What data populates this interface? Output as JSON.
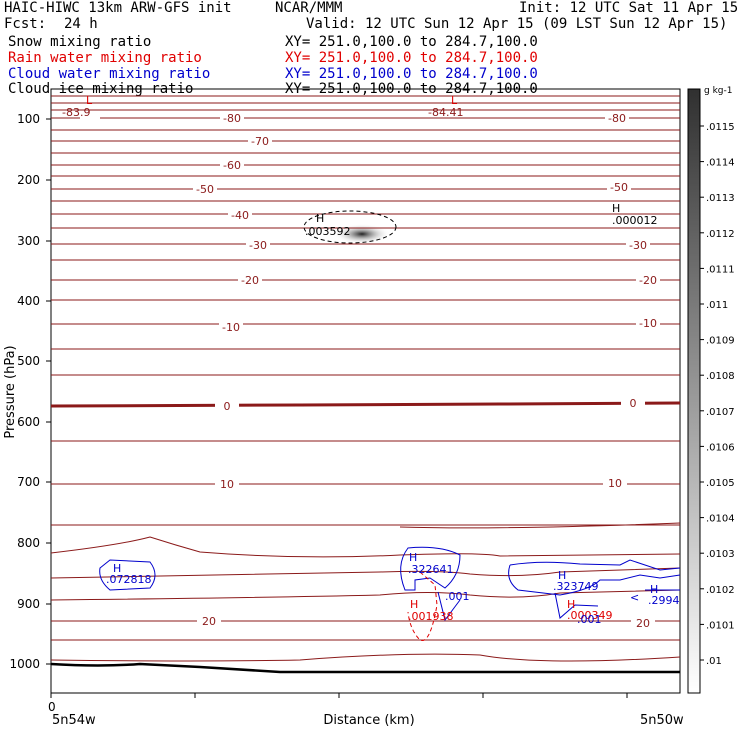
{
  "header": {
    "model": "HAIC-HIWC 13km ARW-GFS init",
    "center": "NCAR/MMM",
    "init": "Init: 12 UTC Sat 11 Apr 15",
    "fcst_label": "Fcst:",
    "fcst_value": "24 h",
    "valid": "Valid: 12 UTC Sun 12 Apr 15 (09 LST Sun 12 Apr 15)",
    "fields": [
      {
        "name": "Snow mixing ratio",
        "xy": "XY= 251.0,100.0 to 284.7,100.0",
        "color": "#000000"
      },
      {
        "name": "Rain water mixing ratio",
        "xy": "XY= 251.0,100.0 to 284.7,100.0",
        "color": "#e00000"
      },
      {
        "name": "Cloud water mixing ratio",
        "xy": "XY= 251.0,100.0 to 284.7,100.0",
        "color": "#0000cc"
      },
      {
        "name": "Cloud ice mixing ratio",
        "xy": "XY= 251.0,100.0 to 284.7,100.0",
        "color": "#000000"
      }
    ]
  },
  "chart_data": {
    "type": "cross-section",
    "ylabel": "Pressure (hPa)",
    "xlabel": "Distance (km)",
    "y_ticks": [
      100,
      200,
      300,
      400,
      500,
      600,
      700,
      800,
      900,
      1000
    ],
    "x_tick_label": "0",
    "x_left_label": "5n54w",
    "x_right_label": "5n50w",
    "colorbar": {
      "unit": "g kg-1",
      "labels": [
        ".0115",
        ".0114",
        ".0113",
        ".0112",
        ".0111",
        ".011",
        ".0109",
        ".0108",
        ".0107",
        ".0106",
        ".0105",
        ".0104",
        ".0103",
        ".0102",
        ".0101",
        ".01"
      ]
    },
    "temperature_labels": [
      "-80",
      "-70",
      "-60",
      "-50",
      "-40",
      "-30",
      "-20",
      "-10",
      "0",
      "10",
      "20"
    ],
    "annotations": [
      {
        "text": "L",
        "color": "#e00000"
      },
      {
        "text": "-83.9",
        "color": "#8b1a1a"
      },
      {
        "text": "L",
        "color": "#e00000"
      },
      {
        "text": "-84.41",
        "color": "#8b1a1a"
      },
      {
        "text": "H",
        "color": "#000000"
      },
      {
        "text": ".003592",
        "color": "#000000"
      },
      {
        "text": "H",
        "color": "#000000"
      },
      {
        "text": ".000012",
        "color": "#000000"
      },
      {
        "text": "H",
        "color": "#0000cc"
      },
      {
        "text": ".072818",
        "color": "#0000cc"
      },
      {
        "text": "H",
        "color": "#0000cc"
      },
      {
        "text": ".322641",
        "color": "#0000cc"
      },
      {
        "text": ".001",
        "color": "#0000cc"
      },
      {
        "text": "H",
        "color": "#e00000"
      },
      {
        "text": ".001938",
        "color": "#e00000"
      },
      {
        "text": "H",
        "color": "#0000cc"
      },
      {
        "text": ".323749",
        "color": "#0000cc"
      },
      {
        "text": "H",
        "color": "#e00000"
      },
      {
        "text": ".000349",
        "color": "#e00000"
      },
      {
        "text": ".001",
        "color": "#0000cc"
      },
      {
        "text": "<",
        "color": "#0000cc"
      },
      {
        "text": "H",
        "color": "#0000cc"
      },
      {
        "text": ".2994",
        "color": "#0000cc"
      }
    ],
    "colors": {
      "isotherm": "#8b1a1a",
      "rain": "#e00000",
      "cloud_water": "#0000cc",
      "axes": "#000000"
    }
  }
}
